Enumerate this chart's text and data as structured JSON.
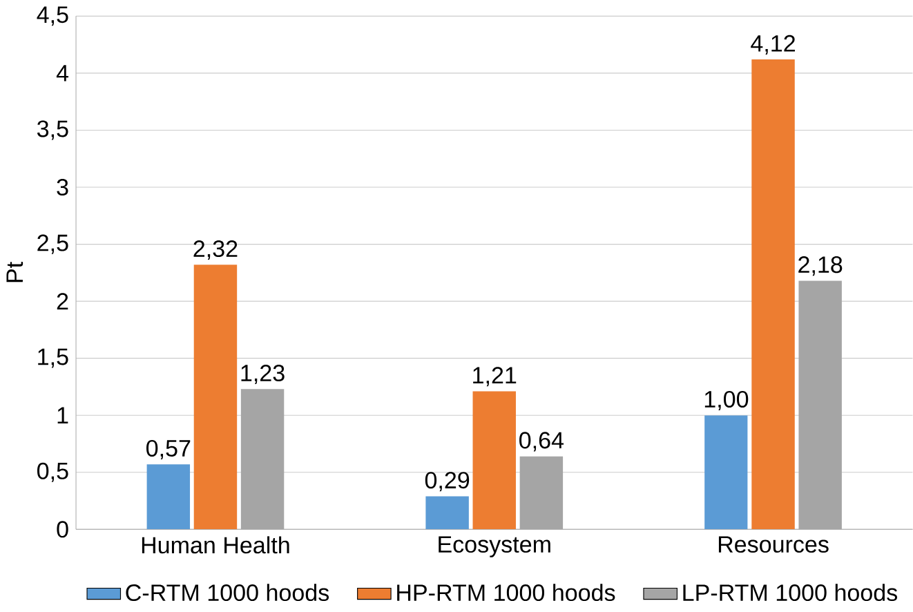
{
  "chart_data": {
    "type": "bar",
    "ylabel": "Pt",
    "categories": [
      "Human Health",
      "Ecosystem",
      "Resources"
    ],
    "series": [
      {
        "name": "C-RTM 1000 hoods",
        "color": "#5b9bd5",
        "values": [
          0.57,
          0.29,
          1.0
        ],
        "value_labels": [
          "0,57",
          "0,29",
          "1,00"
        ]
      },
      {
        "name": "HP-RTM 1000 hoods",
        "color": "#ed7d31",
        "values": [
          2.32,
          1.21,
          4.12
        ],
        "value_labels": [
          "2,32",
          "1,21",
          "4,12"
        ]
      },
      {
        "name": "LP-RTM 1000 hoods",
        "color": "#a5a5a5",
        "values": [
          1.23,
          0.64,
          2.18
        ],
        "value_labels": [
          "1,23",
          "0,64",
          "2,18"
        ]
      }
    ],
    "ylim": [
      0,
      4.5
    ],
    "yticks": [
      0,
      {
        "value": 0.5,
        "label": "0,5"
      },
      1,
      {
        "value": 1.5,
        "label": "1,5"
      },
      2,
      {
        "value": 2.5,
        "label": "2,5"
      },
      3,
      {
        "value": 3.5,
        "label": "3,5"
      },
      4,
      {
        "value": 4.5,
        "label": "4,5"
      }
    ],
    "grid": "y",
    "legend": "bottom"
  }
}
